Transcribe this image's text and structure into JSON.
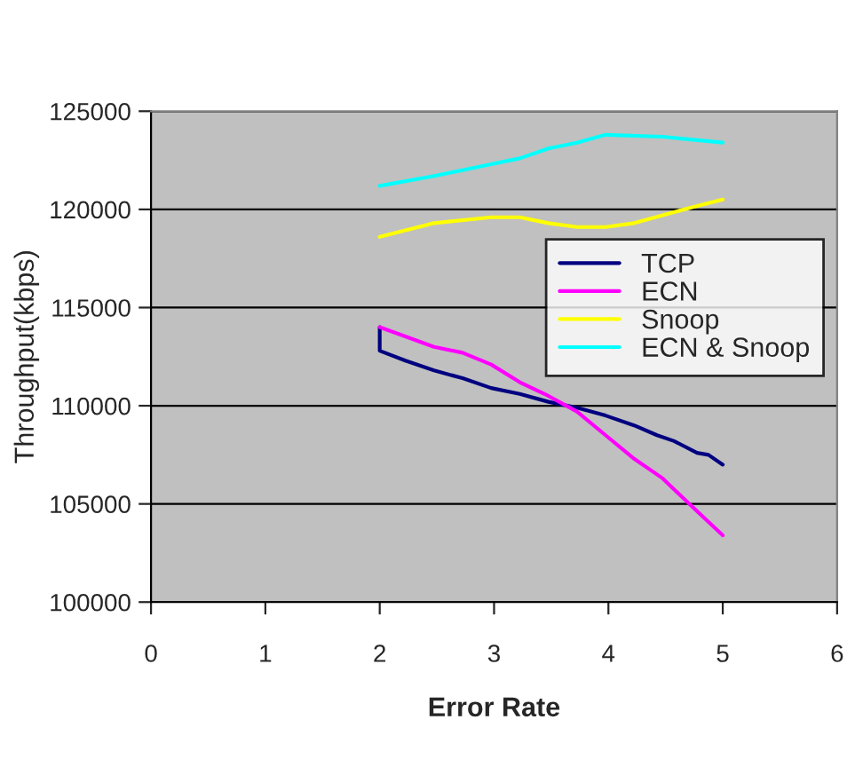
{
  "chart_data": {
    "type": "line",
    "xlabel": "Error Rate",
    "ylabel": "Throughput(kbps)",
    "xlim": [
      0,
      6
    ],
    "xticks": [
      0,
      1,
      2,
      3,
      4,
      5,
      6
    ],
    "ylim": [
      100000,
      125000
    ],
    "yticks": [
      100000,
      105000,
      110000,
      115000,
      120000,
      125000
    ],
    "grid": "y",
    "legend": "right",
    "marker": "none",
    "line_style": "solid",
    "series": [
      {
        "name": "TCP",
        "color": "#000080",
        "x": [
          2,
          2,
          2.225,
          2.475,
          2.725,
          2.975,
          3.225,
          3.475,
          3.725,
          3.975,
          4.225,
          4.425,
          4.575,
          4.775,
          4.875,
          5
        ],
        "values": [
          114000,
          112800,
          112300,
          111800,
          111400,
          110900,
          110600,
          110200,
          109900,
          109500,
          109000,
          108500,
          108200,
          107600,
          107500,
          107000
        ]
      },
      {
        "name": "ECN",
        "color": "#ff00ff",
        "x": [
          2,
          2.475,
          2.725,
          2.975,
          3.225,
          3.475,
          3.725,
          3.975,
          4.225,
          4.475,
          4.725,
          5
        ],
        "values": [
          114000,
          113000,
          112700,
          112100,
          111200,
          110500,
          109700,
          108500,
          107300,
          106300,
          104900,
          103400
        ]
      },
      {
        "name": "Snoop",
        "color": "#ffff00",
        "x": [
          2,
          2.475,
          2.975,
          3.225,
          3.475,
          3.725,
          3.975,
          4.225,
          4.475,
          4.725,
          5
        ],
        "values": [
          118600,
          119300,
          119600,
          119600,
          119300,
          119100,
          119100,
          119300,
          119700,
          120100,
          120500
        ]
      },
      {
        "name": "ECN & Snoop",
        "color": "#00ffff",
        "x": [
          2,
          2.475,
          2.975,
          3.225,
          3.475,
          3.725,
          3.975,
          4.475,
          5
        ],
        "values": [
          121200,
          121700,
          122300,
          122600,
          123100,
          123400,
          123800,
          123700,
          123400
        ]
      }
    ]
  }
}
